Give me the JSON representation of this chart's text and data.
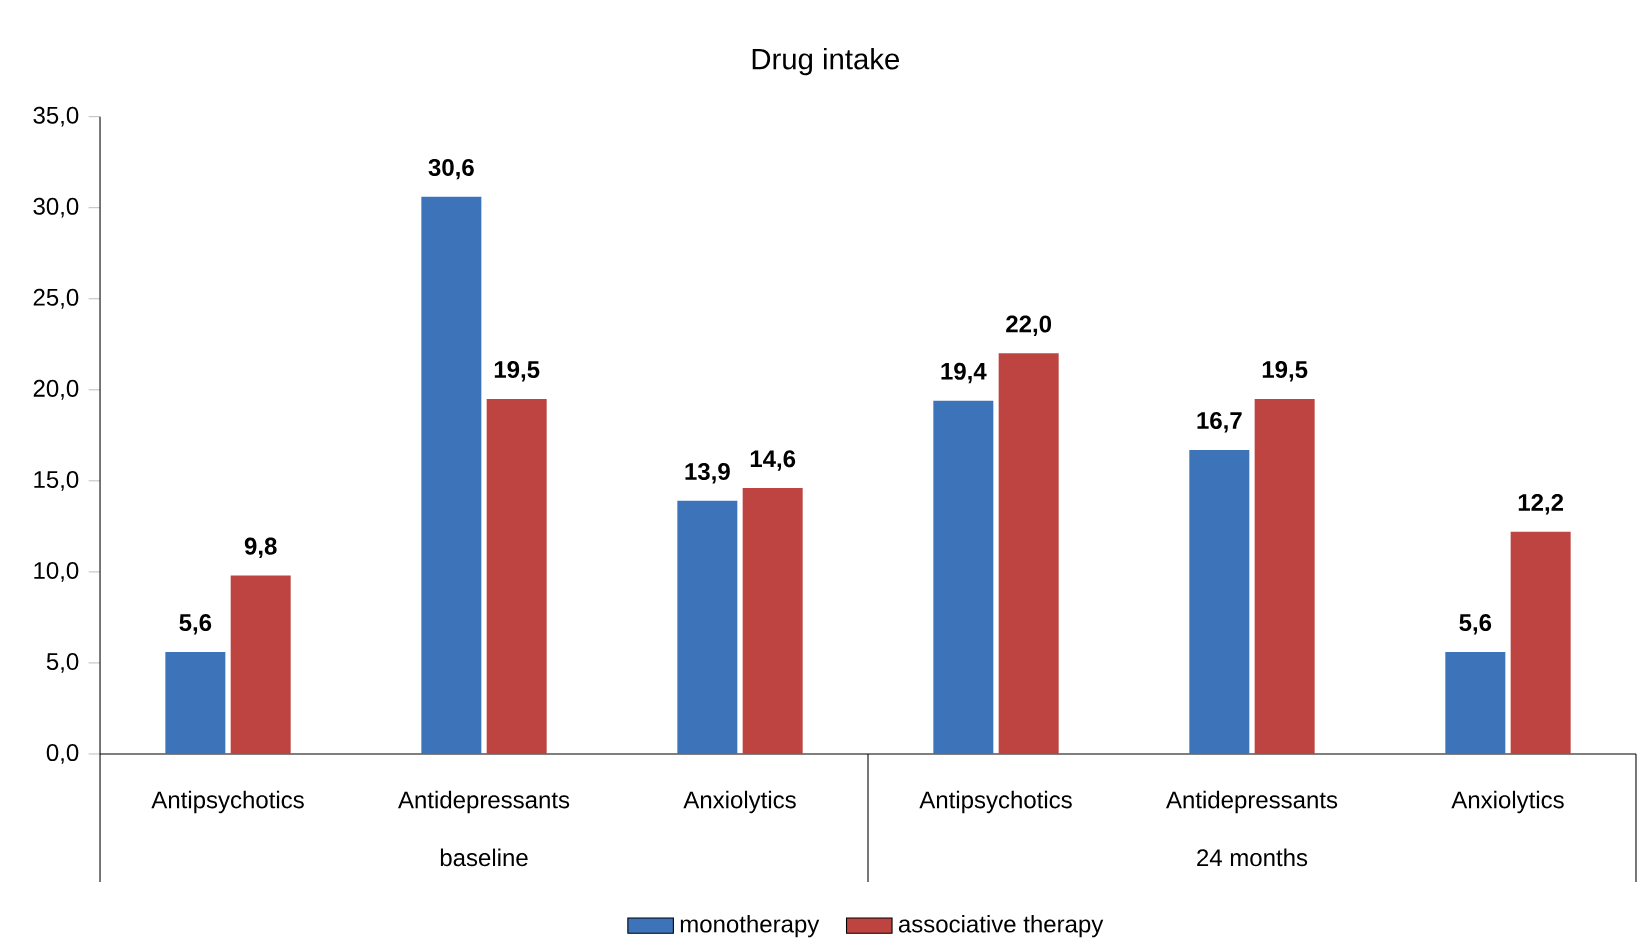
{
  "chart_data": {
    "type": "bar",
    "title": "Drug intake",
    "categories": [
      "Antipsychotics",
      "Antidepressants",
      "Anxiolytics",
      "Antipsychotics",
      "Antidepressants",
      "Anxiolytics"
    ],
    "annotations": [
      "baseline",
      "24 months"
    ],
    "series": [
      {
        "name": "monotherapy",
        "color": "#3d73b9",
        "values": [
          5.6,
          30.6,
          13.9,
          19.4,
          16.7,
          5.6
        ],
        "value_labels": [
          "5,6",
          "30,6",
          "13,9",
          "19,4",
          "16,7",
          "5,6"
        ]
      },
      {
        "name": "associative therapy",
        "color": "#be4441",
        "values": [
          9.8,
          19.5,
          14.6,
          22.0,
          19.5,
          12.2
        ],
        "value_labels": [
          "9,8",
          "19,5",
          "14,6",
          "22,0",
          "19,5",
          "12,2"
        ]
      }
    ],
    "ylim": [
      0,
      35
    ],
    "yticks": [
      {
        "value": 0,
        "label": "0,0"
      },
      {
        "value": 5,
        "label": "5,0"
      },
      {
        "value": 10,
        "label": "10,0"
      },
      {
        "value": 15,
        "label": "15,0"
      },
      {
        "value": 20,
        "label": "20,0"
      },
      {
        "value": 25,
        "label": "25,0"
      },
      {
        "value": 30,
        "label": "30,0"
      },
      {
        "value": 35,
        "label": "35,0"
      }
    ],
    "legend": "bottom",
    "grid": false
  }
}
